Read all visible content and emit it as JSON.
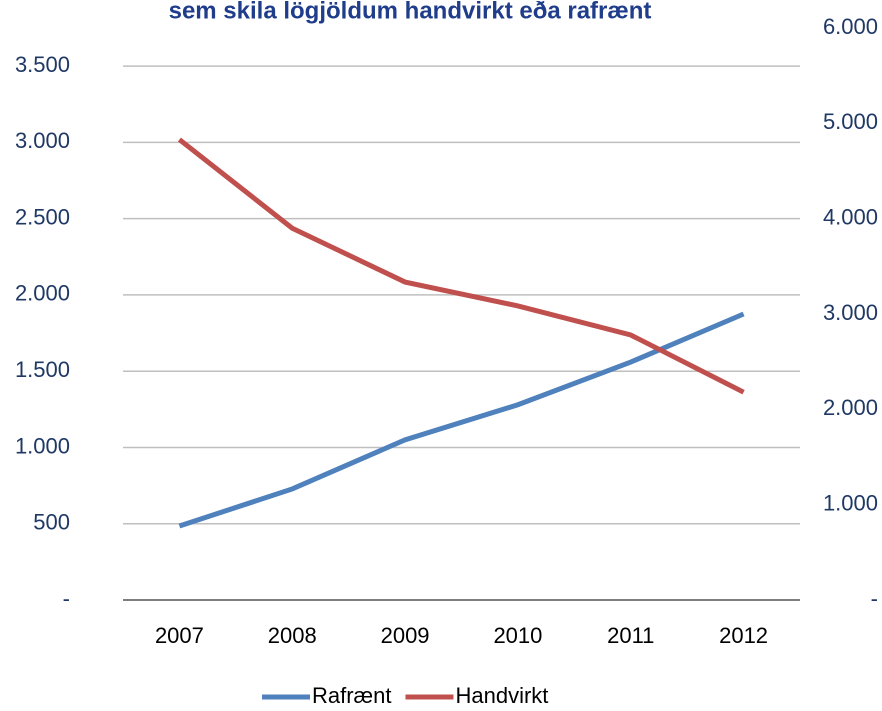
{
  "chart_data": {
    "type": "line",
    "title": "sem skila lögjöldum handvirkt eða rafrænt",
    "categories": [
      "2007",
      "2008",
      "2009",
      "2010",
      "2011",
      "2012"
    ],
    "series": [
      {
        "name": "Rafrænt",
        "color": "#4f81bd",
        "values": [
          485,
          728,
          1050,
          1280,
          1560,
          1875
        ]
      },
      {
        "name": "Handvirkt",
        "color": "#c0504d",
        "axis": "y2",
        "values": [
          4830,
          3900,
          3335,
          3085,
          2780,
          2180
        ]
      }
    ],
    "ylim": [
      0,
      3750
    ],
    "yticks": [
      {
        "value": 0,
        "label": "-"
      },
      500,
      {
        "value": 1000,
        "label": "1.000"
      },
      {
        "value": 1500,
        "label": "1.500"
      },
      {
        "value": 2000,
        "label": "2.000"
      },
      {
        "value": 2500,
        "label": "2.500"
      },
      {
        "value": 3000,
        "label": "3.000"
      },
      {
        "value": 3500,
        "label": "3.500"
      }
    ],
    "y2lim": [
      0,
      6000
    ],
    "y2ticks": [
      {
        "value": 0,
        "label": "-"
      },
      {
        "value": 1000,
        "label": "1.000"
      },
      {
        "value": 2000,
        "label": "2.000"
      },
      {
        "value": 3000,
        "label": "3.000"
      },
      {
        "value": 4000,
        "label": "4.000"
      },
      {
        "value": 5000,
        "label": "5.000"
      },
      {
        "value": 6000,
        "label": "6.000"
      }
    ],
    "grid": true,
    "legend": "bottom"
  }
}
